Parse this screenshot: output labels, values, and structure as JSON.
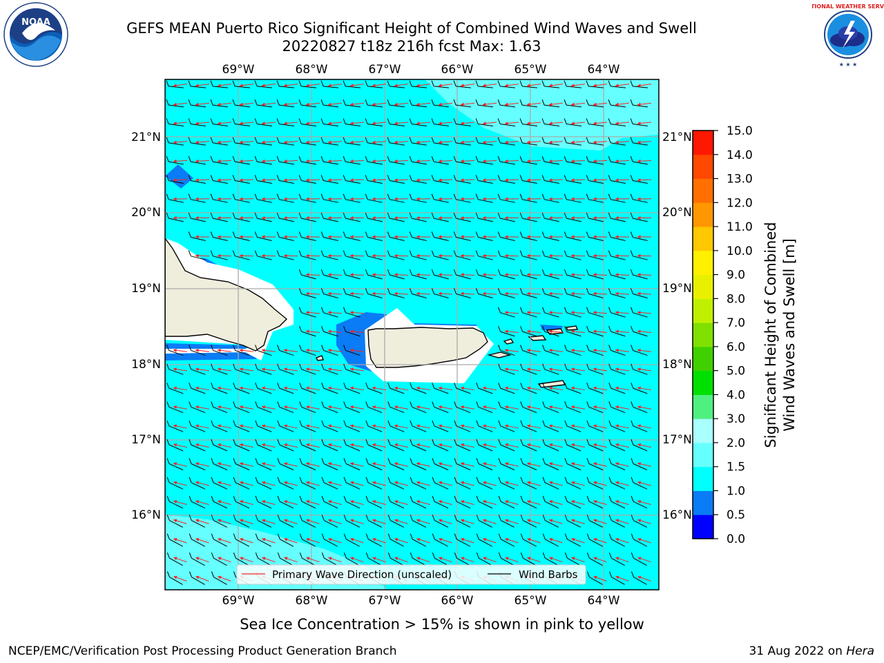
{
  "title": {
    "line1": "GEFS MEAN Puerto Rico Significant Height of Combined Wind Waves and Swell",
    "line2": "20220827 t18z 216h fcst   Max: 1.63"
  },
  "map": {
    "lon_labels": [
      "69°W",
      "68°W",
      "67°W",
      "66°W",
      "65°W",
      "64°W"
    ],
    "lat_labels": [
      "21°N",
      "20°N",
      "19°N",
      "18°N",
      "17°N",
      "16°N"
    ],
    "ocean_color": "#00ffff",
    "land_color": "#efeddc",
    "light_shade_color": "#66ffff",
    "blue_shade_color": "#0a7cf5"
  },
  "legend": {
    "wave_direction": "Primary Wave Direction (unscaled)",
    "wind_barbs": "Wind Barbs"
  },
  "colorbar": {
    "label_line1": "Significant Height of Combined",
    "label_line2": "Wind Waves and Swell [m]",
    "ticks": [
      "0.0",
      "0.5",
      "1.0",
      "1.5",
      "2.0",
      "3.0",
      "4.0",
      "5.0",
      "6.0",
      "7.0",
      "8.0",
      "9.0",
      "10.0",
      "11.0",
      "12.0",
      "13.0",
      "14.0",
      "15.0"
    ],
    "colors": [
      "#0000ff",
      "#0a7cf5",
      "#00ffff",
      "#66ffff",
      "#aaffff",
      "#50f080",
      "#00e000",
      "#40d000",
      "#80e000",
      "#c0f000",
      "#e8f000",
      "#fff000",
      "#ffc800",
      "#ff9800",
      "#ff7000",
      "#ff4800",
      "#ff1800"
    ]
  },
  "footer": {
    "sea_ice_note": "Sea Ice Concentration > 15% is shown in pink to yellow",
    "credit": "NCEP/EMC/Verification Post Processing Product Generation Branch",
    "date_prefix": "31 Aug 2022 on ",
    "machine": "Hera"
  },
  "logos": {
    "noaa": "NOAA",
    "nws": "NATIONAL WEATHER SERVICE"
  }
}
